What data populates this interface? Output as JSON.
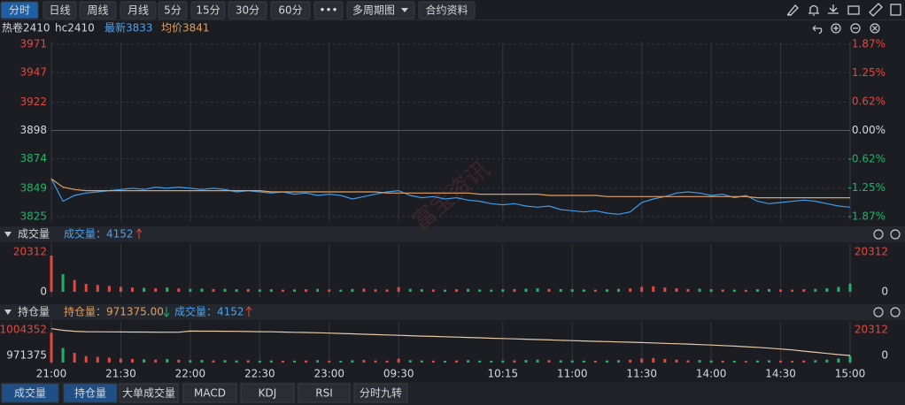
{
  "toolbar": {
    "buttons": [
      "分时",
      "日线",
      "周线",
      "月线",
      "5分",
      "15分",
      "30分",
      "60分",
      "•••",
      "多周期图",
      "合约资料"
    ]
  },
  "quote": {
    "name": "热卷2410",
    "code": "hc2410",
    "latest": "最新3833",
    "average": "均价3841"
  },
  "watermark": "富宝资讯",
  "volume_header": {
    "title": "成交量",
    "value": "成交量：4152"
  },
  "oi_header": {
    "title": "持仓量",
    "value": "持仓量：971375.00",
    "volume": "成交量：4152"
  },
  "tabs": [
    "成交量",
    "持仓量",
    "大单成交量",
    "MACD",
    "KDJ",
    "RSI",
    "分时九转"
  ],
  "chart_data": [
    {
      "type": "line",
      "x": [
        0,
        5,
        10,
        15,
        20,
        25,
        30,
        35,
        40,
        45,
        50,
        55,
        60,
        65,
        70,
        75,
        80,
        85,
        90,
        95,
        100,
        105,
        110,
        115,
        120,
        125,
        130,
        135,
        140,
        145,
        150,
        155,
        160,
        165,
        170,
        175,
        180,
        185,
        190,
        195,
        200,
        205,
        210,
        215,
        220,
        225,
        230,
        235,
        240,
        245,
        250,
        255,
        260,
        265,
        270,
        275,
        280,
        285,
        290,
        295,
        300,
        305,
        310,
        315,
        320,
        325,
        330,
        335,
        340,
        345
      ],
      "series": [
        {
          "color": "#3d9be9",
          "values": [
            3857,
            3838,
            3843,
            3845,
            3846,
            3847,
            3848,
            3849,
            3848,
            3850,
            3849,
            3850,
            3849,
            3848,
            3849,
            3848,
            3846,
            3847,
            3846,
            3845,
            3846,
            3844,
            3845,
            3843,
            3844,
            3843,
            3840,
            3842,
            3844,
            3846,
            3847,
            3843,
            3841,
            3842,
            3840,
            3841,
            3839,
            3838,
            3836,
            3835,
            3836,
            3834,
            3833,
            3834,
            3831,
            3830,
            3829,
            3830,
            3828,
            3827,
            3829,
            3837,
            3840,
            3842,
            3845,
            3846,
            3845,
            3843,
            3844,
            3841,
            3843,
            3838,
            3836,
            3837,
            3838,
            3839,
            3838,
            3836,
            3834,
            3833
          ]
        },
        {
          "color": "#e0a060",
          "values": [
            3857,
            3850,
            3848,
            3847,
            3847,
            3847,
            3847,
            3847,
            3847,
            3847,
            3847,
            3847,
            3847,
            3847,
            3847,
            3847,
            3847,
            3847,
            3847,
            3846,
            3846,
            3846,
            3846,
            3846,
            3846,
            3846,
            3846,
            3846,
            3846,
            3845,
            3845,
            3845,
            3845,
            3845,
            3845,
            3845,
            3845,
            3844,
            3844,
            3844,
            3844,
            3844,
            3844,
            3843,
            3843,
            3843,
            3843,
            3843,
            3842,
            3842,
            3842,
            3842,
            3842,
            3842,
            3842,
            3842,
            3842,
            3842,
            3842,
            3842,
            3842,
            3841,
            3841,
            3841,
            3841,
            3841,
            3841,
            3841,
            3841,
            3841
          ]
        }
      ],
      "xlim": [
        0,
        345
      ],
      "xticks": [
        {
          "value": 0,
          "label": "21:00"
        },
        {
          "value": 30,
          "label": "21:30"
        },
        {
          "value": 60,
          "label": "22:00"
        },
        {
          "value": 90,
          "label": "22:30"
        },
        {
          "value": 120,
          "label": "23:00"
        },
        {
          "value": 150,
          "label": "09:30"
        },
        {
          "value": 195,
          "label": "10:15"
        },
        {
          "value": 225,
          "label": "11:00"
        },
        {
          "value": 255,
          "label": "11:30"
        },
        {
          "value": 285,
          "label": "14:00"
        },
        {
          "value": 315,
          "label": "14:30"
        },
        {
          "value": 345,
          "label": "15:00"
        }
      ],
      "ylim": [
        3825,
        3971
      ],
      "yticks": [
        3971,
        3947,
        3922,
        3898,
        3874,
        3849,
        3825
      ],
      "y2lim": [
        -1.87,
        1.87
      ],
      "y2ticks": [
        {
          "value": 1.87,
          "label": "1.87%"
        },
        {
          "value": 1.25,
          "label": "1.25%"
        },
        {
          "value": 0.62,
          "label": "0.62%"
        },
        {
          "value": 0,
          "label": "0.00%"
        },
        {
          "value": -0.62,
          "label": "-0.62%"
        },
        {
          "value": -1.25,
          "label": "-1.25%"
        },
        {
          "value": -1.87,
          "label": "-1.87%"
        }
      ]
    },
    {
      "type": "bar",
      "up_color": "#e5483f",
      "down_color": "#1fb36b",
      "values": [
        18500,
        9000,
        6000,
        4000,
        3500,
        3000,
        2500,
        2200,
        2000,
        1800,
        2200,
        1700,
        1500,
        1600,
        1400,
        1500,
        1300,
        1400,
        1200,
        1300,
        1100,
        1200,
        1300,
        1500,
        1200,
        1100,
        1400,
        1600,
        1300,
        1200,
        2400,
        1500,
        1300,
        1200,
        1100,
        1300,
        1500,
        1200,
        1100,
        1300,
        1400,
        1600,
        1800,
        1500,
        1400,
        1300,
        1200,
        1100,
        1300,
        1500,
        1700,
        2500,
        2800,
        2200,
        1800,
        1400,
        1600,
        1300,
        1200,
        1100,
        1000,
        1300,
        1400,
        1200,
        1100,
        1300,
        1500,
        1800,
        2500,
        4152
      ],
      "ylim": [
        0,
        20312
      ],
      "yticks": [
        0,
        20312
      ]
    },
    {
      "type": "line",
      "series": [
        {
          "color": "#e8c9a6",
          "values": [
            1005800,
            1003800,
            1002500,
            1002000,
            1001800,
            1001700,
            1001600,
            1001500,
            1001500,
            1001400,
            1001300,
            1001300,
            1002800,
            1002700,
            1002600,
            1002500,
            1002400,
            1002200,
            1002000,
            1001800,
            1001500,
            1001200,
            1000900,
            1000600,
            1000200,
            999700,
            999200,
            998700,
            998200,
            997800,
            997300,
            996800,
            996300,
            995900,
            995500,
            995000,
            994600,
            994100,
            993600,
            993200,
            992800,
            992300,
            991900,
            991400,
            990900,
            990500,
            990000,
            989600,
            989200,
            988800,
            988400,
            988000,
            987500,
            987000,
            986500,
            986000,
            985400,
            984800,
            984100,
            983400,
            982600,
            981800,
            980800,
            979700,
            978500,
            977000,
            975500,
            974000,
            972500,
            971375
          ]
        }
      ],
      "ylim": [
        971375,
        1004352
      ],
      "yticks": [
        971375,
        1004352
      ],
      "y2lim": [
        0,
        20312
      ],
      "y2ticks": [
        0,
        20312
      ]
    }
  ]
}
